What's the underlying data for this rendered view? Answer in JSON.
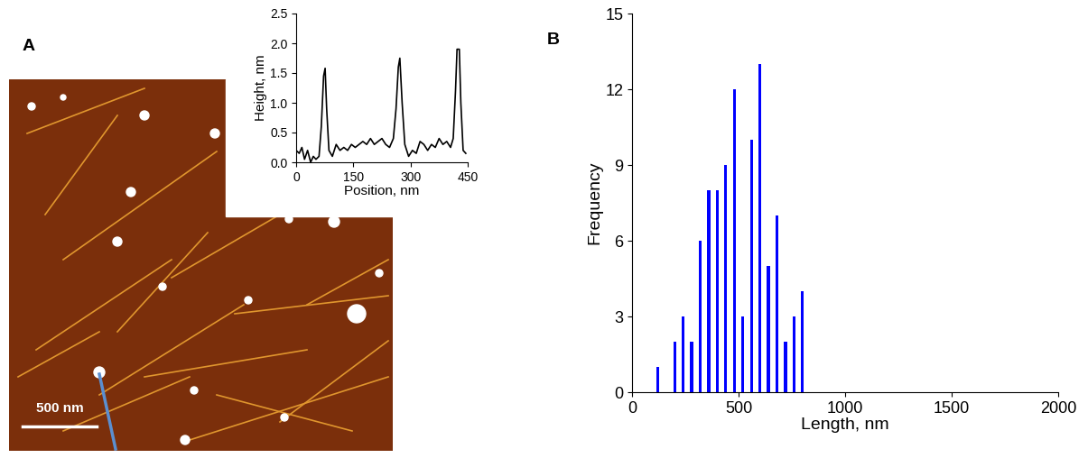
{
  "image": {
    "label": "A",
    "scale_bar": "500 nm"
  },
  "chart_data": [
    {
      "type": "line",
      "xlabel": "Position, nm",
      "ylabel": "Height, nm",
      "x": [
        0,
        8,
        15,
        22,
        30,
        38,
        45,
        52,
        60,
        66,
        72,
        76,
        80,
        86,
        95,
        105,
        115,
        125,
        135,
        145,
        155,
        165,
        175,
        185,
        195,
        205,
        215,
        225,
        235,
        245,
        255,
        262,
        268,
        272,
        278,
        285,
        295,
        305,
        315,
        325,
        335,
        345,
        355,
        365,
        375,
        385,
        395,
        405,
        412,
        418,
        422,
        428,
        432,
        438,
        445
      ],
      "values": [
        0.2,
        0.15,
        0.25,
        0.05,
        0.2,
        0.0,
        0.1,
        0.05,
        0.1,
        0.6,
        1.45,
        1.58,
        0.9,
        0.2,
        0.1,
        0.3,
        0.2,
        0.25,
        0.2,
        0.3,
        0.25,
        0.3,
        0.35,
        0.3,
        0.4,
        0.3,
        0.35,
        0.4,
        0.3,
        0.25,
        0.4,
        0.9,
        1.6,
        1.75,
        1.0,
        0.3,
        0.1,
        0.2,
        0.15,
        0.35,
        0.3,
        0.2,
        0.3,
        0.25,
        0.4,
        0.3,
        0.35,
        0.25,
        0.4,
        1.2,
        1.9,
        1.9,
        1.0,
        0.2,
        0.15
      ],
      "color": "#000000",
      "xlim": [
        0,
        450
      ],
      "xticks": [
        0,
        150,
        300,
        450
      ],
      "ylim": [
        0,
        2.5
      ],
      "yticks": [
        {
          "value": 0,
          "label": "0.0"
        },
        {
          "value": 0.5,
          "label": "0.5"
        },
        {
          "value": 1,
          "label": "1.0"
        },
        {
          "value": 1.5,
          "label": "1.5"
        },
        {
          "value": 2,
          "label": "2.0"
        },
        {
          "value": 2.5,
          "label": "2.5"
        }
      ]
    },
    {
      "type": "bar",
      "title": "B",
      "xlabel": "Length, nm",
      "ylabel": "Frequency",
      "x": [
        120,
        200,
        240,
        280,
        320,
        360,
        400,
        440,
        480,
        520,
        560,
        600,
        640,
        680,
        720,
        760,
        800
      ],
      "values": [
        1,
        2,
        3,
        2,
        6,
        8,
        8,
        9,
        12,
        3,
        10,
        13,
        5,
        7,
        2,
        3,
        4
      ],
      "color": "#0000ff",
      "xlim": [
        0,
        2000
      ],
      "xticks": [
        0,
        500,
        1000,
        1500,
        2000
      ],
      "ylim": [
        0,
        15
      ],
      "yticks": [
        0,
        3,
        6,
        9,
        12,
        15
      ]
    }
  ]
}
